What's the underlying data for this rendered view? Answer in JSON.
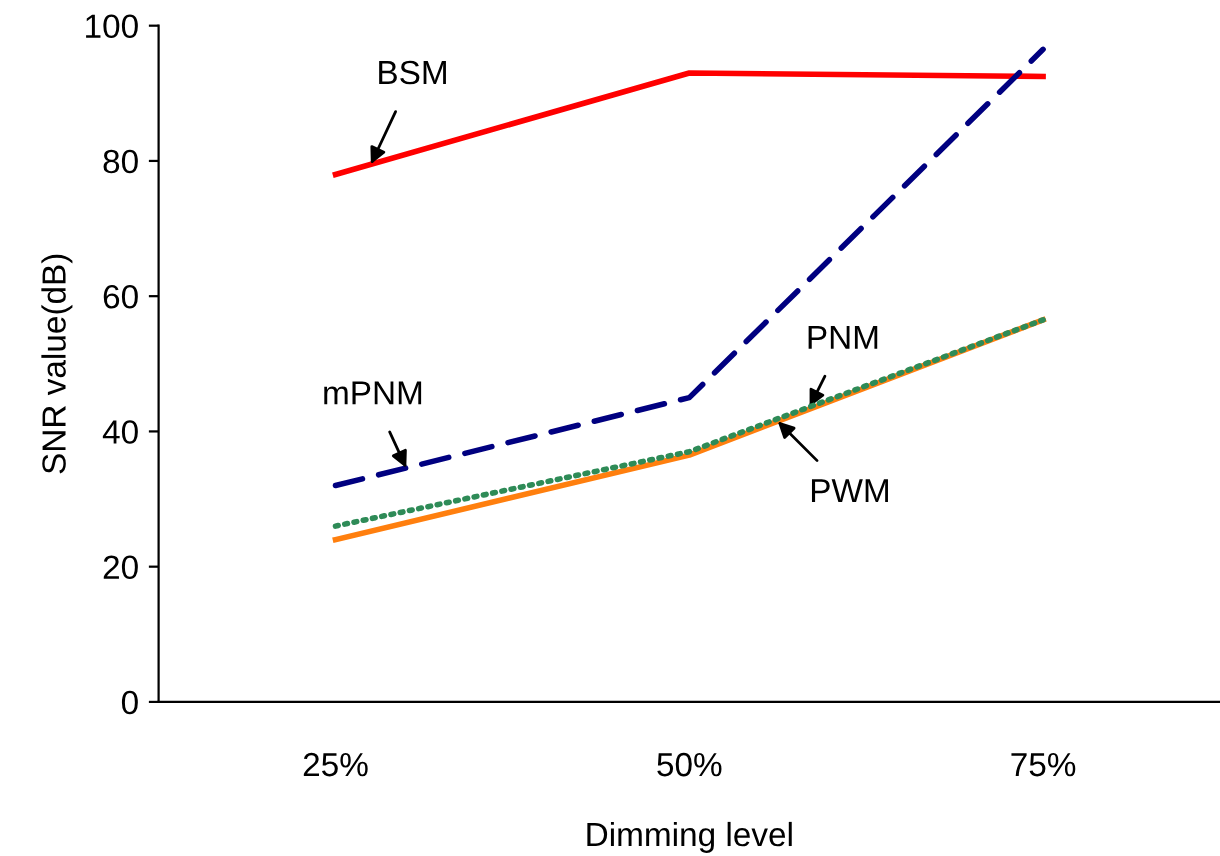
{
  "chart_data": {
    "type": "line",
    "xlabel": "Dimming level",
    "ylabel": "SNR value(dB)",
    "categories": [
      "25%",
      "50%",
      "75%"
    ],
    "ylim": [
      0,
      100
    ],
    "yticks": [
      0,
      20,
      40,
      60,
      80,
      100
    ],
    "grid": false,
    "legend": false,
    "marker": "none",
    "series": [
      {
        "name": "BSM",
        "color": "#ff0000",
        "line_style": "solid",
        "values": [
          78,
          93,
          92.5
        ]
      },
      {
        "name": "mPNM",
        "color": "#000080",
        "line_style": "dashed",
        "values": [
          32,
          45,
          96.5
        ]
      },
      {
        "name": "PNM",
        "color": "#2e8b57",
        "line_style": "dotted",
        "values": [
          26,
          37,
          56.5
        ]
      },
      {
        "name": "PWM",
        "color": "#ff7f0e",
        "line_style": "solid",
        "values": [
          24,
          36.5,
          56.5
        ]
      }
    ]
  }
}
